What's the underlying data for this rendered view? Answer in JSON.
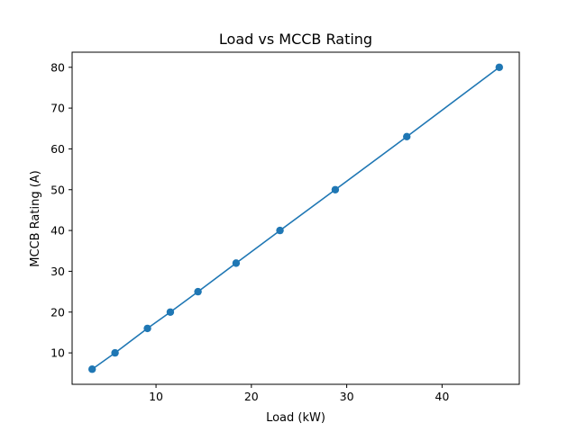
{
  "chart_data": {
    "type": "line",
    "title": "Load vs MCCB Rating",
    "xlabel": "Load (kW)",
    "ylabel": "MCCB Rating (A)",
    "xlim": [
      1.2,
      48.1
    ],
    "ylim": [
      2.3,
      83.7
    ],
    "xticks": [
      10,
      20,
      30,
      40
    ],
    "yticks": [
      10,
      20,
      30,
      40,
      50,
      60,
      70,
      80
    ],
    "grid": false,
    "marker": "circle",
    "series": [
      {
        "color": "#1f77b4",
        "x": [
          3.3,
          5.7,
          9.1,
          11.5,
          14.4,
          18.4,
          23.0,
          28.8,
          36.3,
          46.0
        ],
        "y": [
          6,
          10,
          16,
          20,
          25,
          32,
          40,
          50,
          63,
          80
        ]
      }
    ]
  }
}
